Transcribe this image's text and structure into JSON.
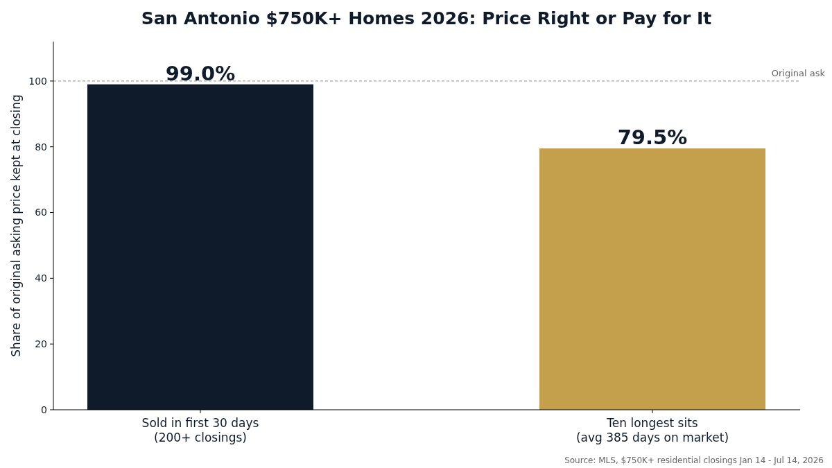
{
  "chart_data": {
    "type": "bar",
    "title": "San Antonio $750K+ Homes 2026: Price Right or Pay for It",
    "ylabel": "Share of original asking price kept at closing",
    "categories": [
      "Sold in first 30 days\n(200+ closings)",
      "Ten longest sits\n(avg 385 days on market)"
    ],
    "values": [
      99.0,
      79.5
    ],
    "colors": [
      "#0f1b2a",
      "#c4a04d"
    ],
    "value_labels": [
      "99.0%",
      "79.5%"
    ],
    "ylim": [
      0,
      112
    ],
    "yticks": [
      0,
      20,
      40,
      60,
      80,
      100
    ],
    "grid": false,
    "ref_lines": [
      {
        "axis": "y",
        "value": 100,
        "label": "Original ask",
        "color": "#888888",
        "line_style": "dashed"
      }
    ],
    "annotations": [
      "Source: MLS, $750K+ residential closings Jan 14 - Jul 14, 2026"
    ]
  }
}
